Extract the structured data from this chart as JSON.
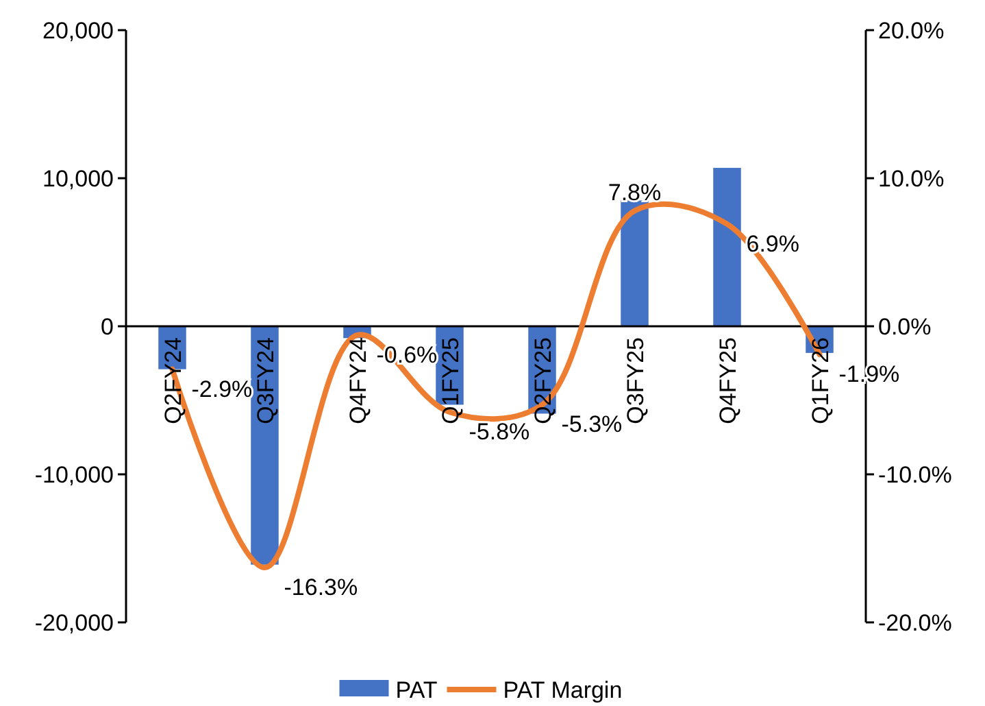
{
  "chart_data": {
    "type": "bar",
    "categories": [
      "Q2FY24",
      "Q3FY24",
      "Q4FY24",
      "Q1FY25",
      "Q2FY25",
      "Q3FY25",
      "Q4FY25",
      "Q1FY26"
    ],
    "series": [
      {
        "name": "PAT",
        "color": "#4472c4",
        "values": [
          -2900,
          -16100,
          -800,
          -5300,
          -5900,
          8500,
          10700,
          -1800
        ]
      },
      {
        "name": "PAT Margin",
        "type": "line",
        "axis": "y2",
        "color": "#ed7d31",
        "values": [
          -2.9,
          -16.3,
          -0.6,
          -5.8,
          -5.3,
          7.8,
          6.9,
          -1.9
        ],
        "value_labels": [
          "-2.9%",
          "-16.3%",
          "-0.6%",
          "-5.8%",
          "-5.3%",
          "7.8%",
          "6.9%",
          "-1.9%"
        ]
      }
    ],
    "ylim": [
      -20000,
      20000
    ],
    "yticks": [
      {
        "value": -20000,
        "label": "-20,000"
      },
      {
        "value": -10000,
        "label": "-10,000"
      },
      0,
      {
        "value": 10000,
        "label": "10,000"
      },
      {
        "value": 20000,
        "label": "20,000"
      }
    ],
    "y2lim": [
      -20,
      20
    ],
    "y2ticks": [
      {
        "value": -20,
        "label": "-20.0%"
      },
      {
        "value": -10,
        "label": "-10.0%"
      },
      {
        "value": 0,
        "label": "0.0%"
      },
      {
        "value": 10,
        "label": "10.0%"
      },
      {
        "value": 20,
        "label": "20.0%"
      }
    ],
    "legend": "bottom",
    "grid": false,
    "marker": "none",
    "line_style": "solid"
  }
}
